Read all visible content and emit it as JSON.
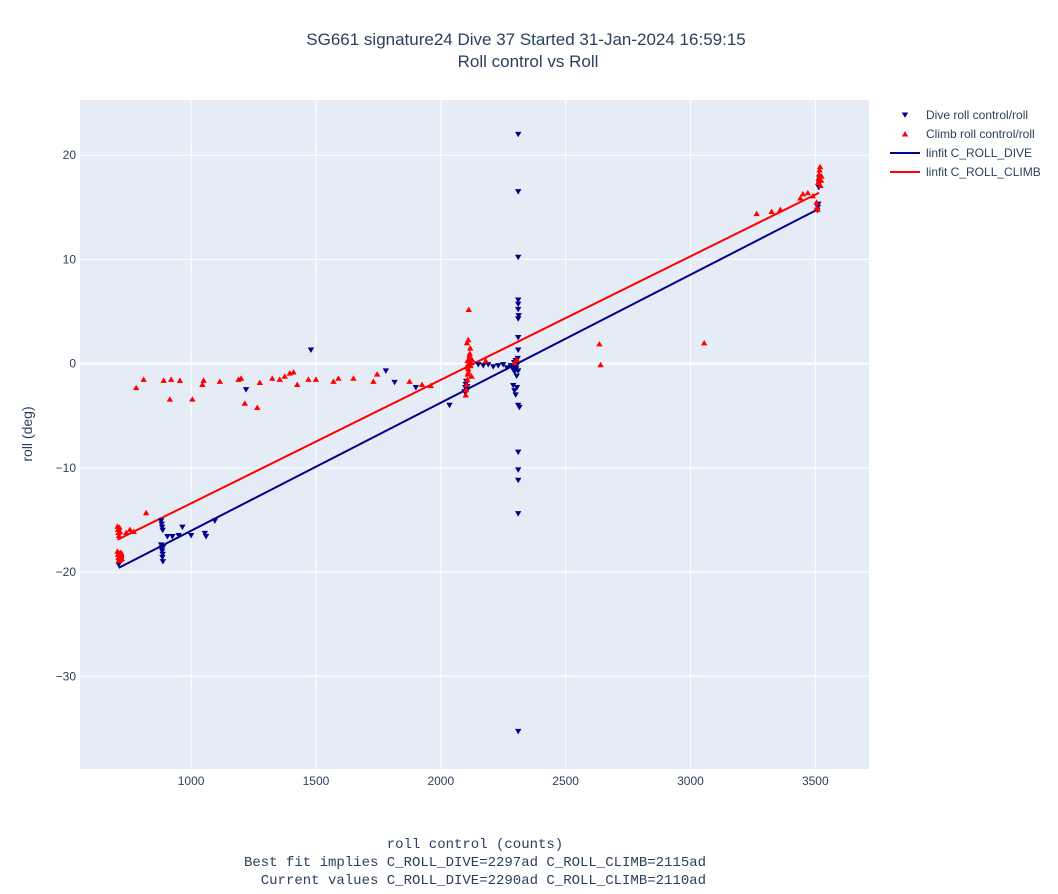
{
  "chart_data": {
    "type": "scatter",
    "title_lines": [
      "SG661 signature24 Dive 37 Started 31-Jan-2024 16:59:15",
      "Roll control vs Roll"
    ],
    "ylabel": "roll (deg)",
    "xlabel_lines": [
      "roll control (counts)",
      "Best fit implies C_ROLL_DIVE=2297ad C_ROLL_CLIMB=2115ad",
      "  Current values C_ROLL_DIVE=2290ad C_ROLL_CLIMB=2110ad"
    ],
    "xlim": [
      555,
      3715
    ],
    "ylim": [
      -38.9,
      25.3
    ],
    "x_ticks": [
      1000,
      1500,
      2000,
      2500,
      3000,
      3500
    ],
    "y_ticks": [
      -30,
      -20,
      -10,
      0,
      10,
      20
    ],
    "grid": true,
    "legend_position": "top-right",
    "plot_bg": "#e5ecf6",
    "series": [
      {
        "name": "Dive roll control/roll",
        "kind": "markers",
        "marker": "triangle-down",
        "color": "#00008b",
        "points": [
          [
            710,
            -19.3
          ],
          [
            712,
            -19.0
          ],
          [
            714,
            -18.7
          ],
          [
            716,
            -18.4
          ],
          [
            718,
            -18.9
          ],
          [
            720,
            -18.6
          ],
          [
            880,
            -15.1
          ],
          [
            882,
            -15.4
          ],
          [
            884,
            -15.7
          ],
          [
            886,
            -16.0
          ],
          [
            880,
            -17.4
          ],
          [
            882,
            -17.7
          ],
          [
            884,
            -18.0
          ],
          [
            886,
            -18.3
          ],
          [
            888,
            -17.6
          ],
          [
            885,
            -18.6
          ],
          [
            887,
            -19.0
          ],
          [
            905,
            -16.6
          ],
          [
            925,
            -16.6
          ],
          [
            950,
            -16.5
          ],
          [
            965,
            -15.7
          ],
          [
            1000,
            -16.5
          ],
          [
            1055,
            -16.3
          ],
          [
            1060,
            -16.6
          ],
          [
            1095,
            -15.1
          ],
          [
            1220,
            -2.5
          ],
          [
            1480,
            1.3
          ],
          [
            1780,
            -0.7
          ],
          [
            1815,
            -1.8
          ],
          [
            1900,
            -2.3
          ],
          [
            2035,
            -4.0
          ],
          [
            2095,
            -2.7
          ],
          [
            2098,
            -2.3
          ],
          [
            2100,
            -2.0
          ],
          [
            2102,
            -1.7
          ],
          [
            2104,
            -2.6
          ],
          [
            2106,
            -2.2
          ],
          [
            2120,
            -0.2
          ],
          [
            2150,
            -0.1
          ],
          [
            2170,
            -0.2
          ],
          [
            2190,
            -0.1
          ],
          [
            2210,
            -0.3
          ],
          [
            2230,
            -0.2
          ],
          [
            2250,
            -0.1
          ],
          [
            2265,
            -0.4
          ],
          [
            2280,
            -0.2
          ],
          [
            2290,
            -0.6
          ],
          [
            2292,
            -0.3
          ],
          [
            2294,
            0.1
          ],
          [
            2296,
            -0.8
          ],
          [
            2298,
            -0.2
          ],
          [
            2300,
            0.3
          ],
          [
            2302,
            -0.5
          ],
          [
            2304,
            -1.2
          ],
          [
            2306,
            -0.1
          ],
          [
            2308,
            0.5
          ],
          [
            2310,
            -0.7
          ],
          [
            2290,
            -2.1
          ],
          [
            2295,
            -2.6
          ],
          [
            2300,
            -3.0
          ],
          [
            2305,
            -2.3
          ],
          [
            2310,
            -4.0
          ],
          [
            2315,
            -4.2
          ],
          [
            2310,
            22.0
          ],
          [
            2310,
            16.5
          ],
          [
            2310,
            10.2
          ],
          [
            2310,
            6.1
          ],
          [
            2310,
            5.7
          ],
          [
            2310,
            5.2
          ],
          [
            2312,
            4.6
          ],
          [
            2310,
            4.3
          ],
          [
            2310,
            1.3
          ],
          [
            2310,
            2.5
          ],
          [
            2310,
            -8.5
          ],
          [
            2310,
            -10.2
          ],
          [
            2310,
            -11.2
          ],
          [
            2310,
            -14.4
          ],
          [
            2310,
            -35.3
          ],
          [
            3508,
            14.7
          ],
          [
            3510,
            15.0
          ],
          [
            3512,
            15.3
          ],
          [
            3514,
            16.9
          ],
          [
            3516,
            17.3
          ],
          [
            3518,
            17.7
          ]
        ]
      },
      {
        "name": "Climb roll control/roll",
        "kind": "markers",
        "marker": "triangle-up",
        "color": "#ff0000",
        "points": [
          [
            705,
            -15.6
          ],
          [
            707,
            -15.9
          ],
          [
            709,
            -16.2
          ],
          [
            711,
            -16.5
          ],
          [
            713,
            -15.7
          ],
          [
            715,
            -16.1
          ],
          [
            705,
            -18.0
          ],
          [
            707,
            -18.3
          ],
          [
            709,
            -18.6
          ],
          [
            711,
            -18.9
          ],
          [
            713,
            -18.2
          ],
          [
            715,
            -18.5
          ],
          [
            717,
            -18.8
          ],
          [
            719,
            -18.1
          ],
          [
            721,
            -18.4
          ],
          [
            723,
            -18.7
          ],
          [
            740,
            -16.2
          ],
          [
            755,
            -15.9
          ],
          [
            770,
            -16.1
          ],
          [
            820,
            -14.3
          ],
          [
            780,
            -2.3
          ],
          [
            810,
            -1.5
          ],
          [
            890,
            -1.6
          ],
          [
            920,
            -1.5
          ],
          [
            955,
            -1.6
          ],
          [
            915,
            -3.4
          ],
          [
            1005,
            -3.4
          ],
          [
            1045,
            -2.0
          ],
          [
            1050,
            -1.6
          ],
          [
            1115,
            -1.7
          ],
          [
            1190,
            -1.5
          ],
          [
            1200,
            -1.4
          ],
          [
            1215,
            -3.8
          ],
          [
            1265,
            -4.2
          ],
          [
            1275,
            -1.8
          ],
          [
            1325,
            -1.4
          ],
          [
            1355,
            -1.5
          ],
          [
            1375,
            -1.2
          ],
          [
            1395,
            -0.9
          ],
          [
            1410,
            -0.8
          ],
          [
            1425,
            -2.0
          ],
          [
            1470,
            -1.5
          ],
          [
            1500,
            -1.5
          ],
          [
            1570,
            -1.7
          ],
          [
            1590,
            -1.4
          ],
          [
            1650,
            -1.4
          ],
          [
            1730,
            -1.7
          ],
          [
            1745,
            -1.0
          ],
          [
            1875,
            -1.7
          ],
          [
            1925,
            -2.0
          ],
          [
            1960,
            -2.1
          ],
          [
            2100,
            -3.0
          ],
          [
            2102,
            -2.5
          ],
          [
            2104,
            -2.0
          ],
          [
            2106,
            -1.5
          ],
          [
            2108,
            -1.0
          ],
          [
            2110,
            -0.5
          ],
          [
            2112,
            0.0
          ],
          [
            2114,
            0.5
          ],
          [
            2116,
            1.0
          ],
          [
            2118,
            1.5
          ],
          [
            2105,
            2.0
          ],
          [
            2110,
            2.3
          ],
          [
            2112,
            5.2
          ],
          [
            2103,
            -0.3
          ],
          [
            2107,
            0.3
          ],
          [
            2111,
            -0.8
          ],
          [
            2115,
            0.8
          ],
          [
            2119,
            -0.2
          ],
          [
            2121,
            0.1
          ],
          [
            2123,
            -1.2
          ],
          [
            2125,
            0.4
          ],
          [
            2180,
            0.3
          ],
          [
            2295,
            0.1
          ],
          [
            2305,
            0.4
          ],
          [
            2635,
            1.9
          ],
          [
            2640,
            -0.1
          ],
          [
            3055,
            2.0
          ],
          [
            3265,
            14.4
          ],
          [
            3325,
            14.6
          ],
          [
            3360,
            14.8
          ],
          [
            3440,
            15.9
          ],
          [
            3450,
            16.3
          ],
          [
            3470,
            16.4
          ],
          [
            3490,
            16.1
          ],
          [
            3505,
            15.5
          ],
          [
            3507,
            15.0
          ],
          [
            3509,
            14.8
          ],
          [
            3511,
            17.4
          ],
          [
            3513,
            17.8
          ],
          [
            3515,
            18.2
          ],
          [
            3517,
            18.6
          ],
          [
            3519,
            18.9
          ],
          [
            3521,
            17.1
          ],
          [
            3523,
            17.6
          ],
          [
            3525,
            18.0
          ]
        ]
      },
      {
        "name": "linfit C_ROLL_DIVE",
        "kind": "line",
        "color": "#00008b",
        "points": [
          [
            710,
            -19.6
          ],
          [
            3510,
            14.8
          ]
        ]
      },
      {
        "name": "linfit C_ROLL_CLIMB",
        "kind": "line",
        "color": "#ff0000",
        "points": [
          [
            705,
            -16.9
          ],
          [
            3515,
            16.4
          ]
        ]
      }
    ]
  }
}
